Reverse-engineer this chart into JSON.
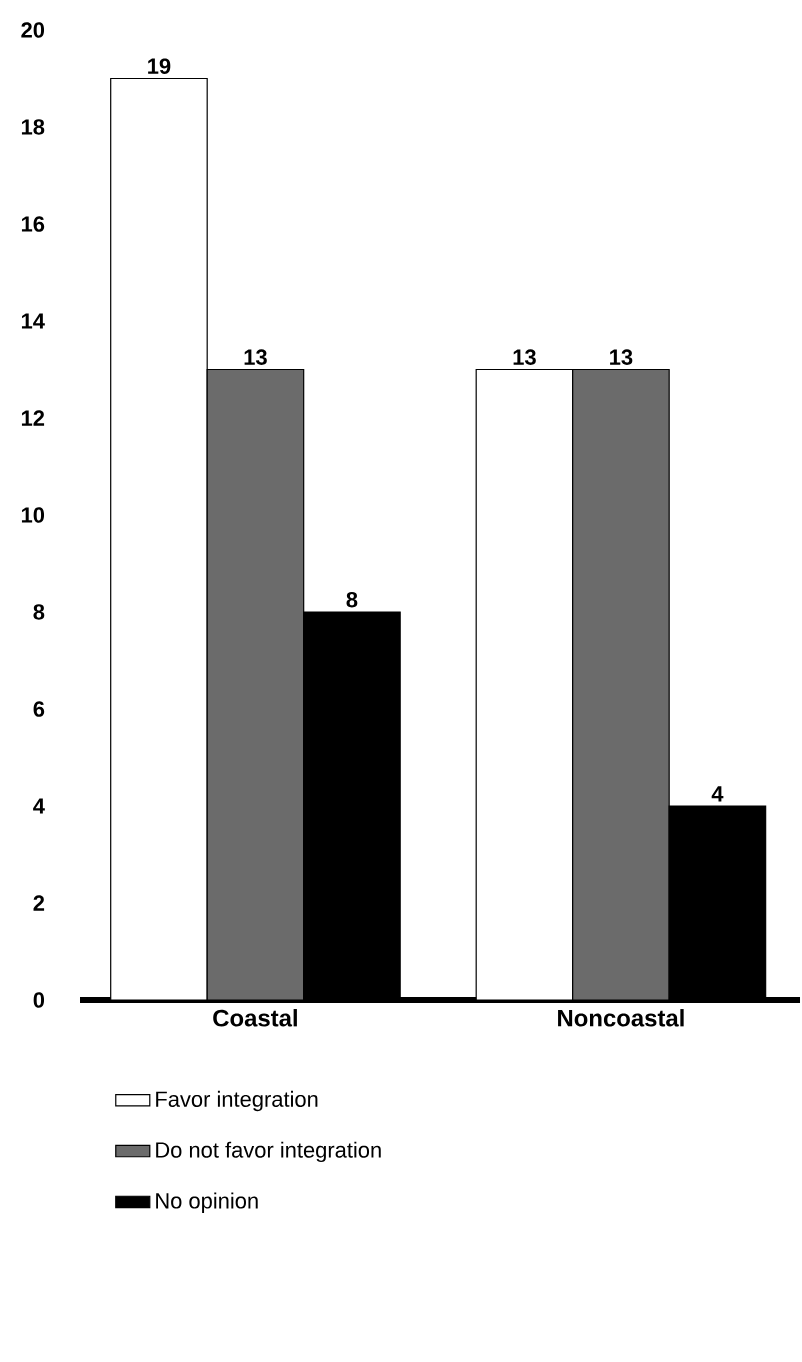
{
  "chart_data": {
    "type": "bar",
    "categories": [
      "Coastal",
      "Noncoastal"
    ],
    "series": [
      {
        "name": "Favor integration",
        "color": "#ffffff",
        "values": [
          19,
          13
        ]
      },
      {
        "name": "Do not favor integration",
        "color": "#6b6b6b",
        "values": [
          13,
          13
        ]
      },
      {
        "name": "No opinion",
        "color": "#000000",
        "values": [
          8,
          4
        ]
      }
    ],
    "ylim": [
      0,
      20
    ],
    "yticks": [
      0,
      2,
      4,
      6,
      8,
      10,
      12,
      14,
      16,
      18,
      20
    ],
    "data_labels": true,
    "legend": "bottom",
    "grid": false
  }
}
